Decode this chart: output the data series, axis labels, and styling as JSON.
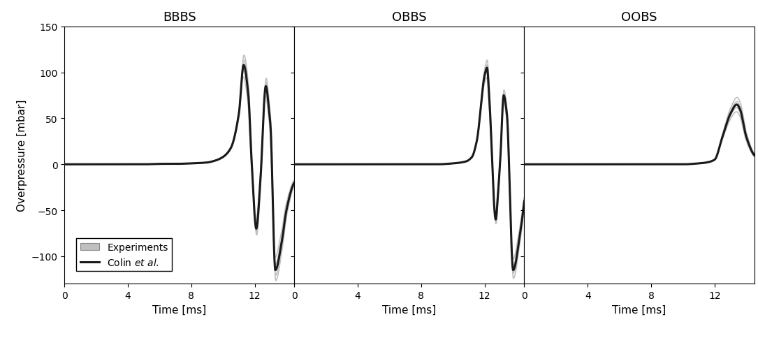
{
  "panels": [
    "BBBS",
    "OBBS",
    "OOBS"
  ],
  "ylim": [
    -130,
    150
  ],
  "yticks": [
    -100,
    -50,
    0,
    50,
    100,
    150
  ],
  "ylabel": "Overpressure [mbar]",
  "xlabel": "Time [ms]",
  "xlim": [
    0,
    14.5
  ],
  "xticks": [
    0,
    4,
    8,
    12
  ],
  "title_fontsize": 13,
  "axis_fontsize": 11,
  "tick_fontsize": 10,
  "legend_fontsize": 10,
  "exp_color": "#c0c0c0",
  "sim_color": "#1a1a1a",
  "exp_lw": 1.2,
  "sim_lw": 2.2,
  "background": "#ffffff",
  "bbbs_sim": {
    "baseline_noise_amp": 1.5,
    "t_rise_start": 9.5,
    "t_peak1": 11.3,
    "peak1": 108,
    "t_trough1": 12.1,
    "trough1": -70,
    "t_peak2": 12.7,
    "peak2": 85,
    "t_trough2": 13.3,
    "trough2": -115,
    "t_end": 14.5
  },
  "obbs_sim": {
    "t_rise_start": 10.5,
    "t_peak1": 12.0,
    "peak1": 97,
    "t_trough1": 12.7,
    "trough1": -60,
    "t_peak2": 13.2,
    "peak2": 75,
    "t_trough2": 13.8,
    "trough2": -115,
    "t_end": 14.5
  },
  "oobs_sim": {
    "t_rise_start": 11.8,
    "t_shoulder": 12.5,
    "shoulder": 30,
    "t_peak1": 13.4,
    "peak1": 65,
    "t_end": 14.5
  }
}
